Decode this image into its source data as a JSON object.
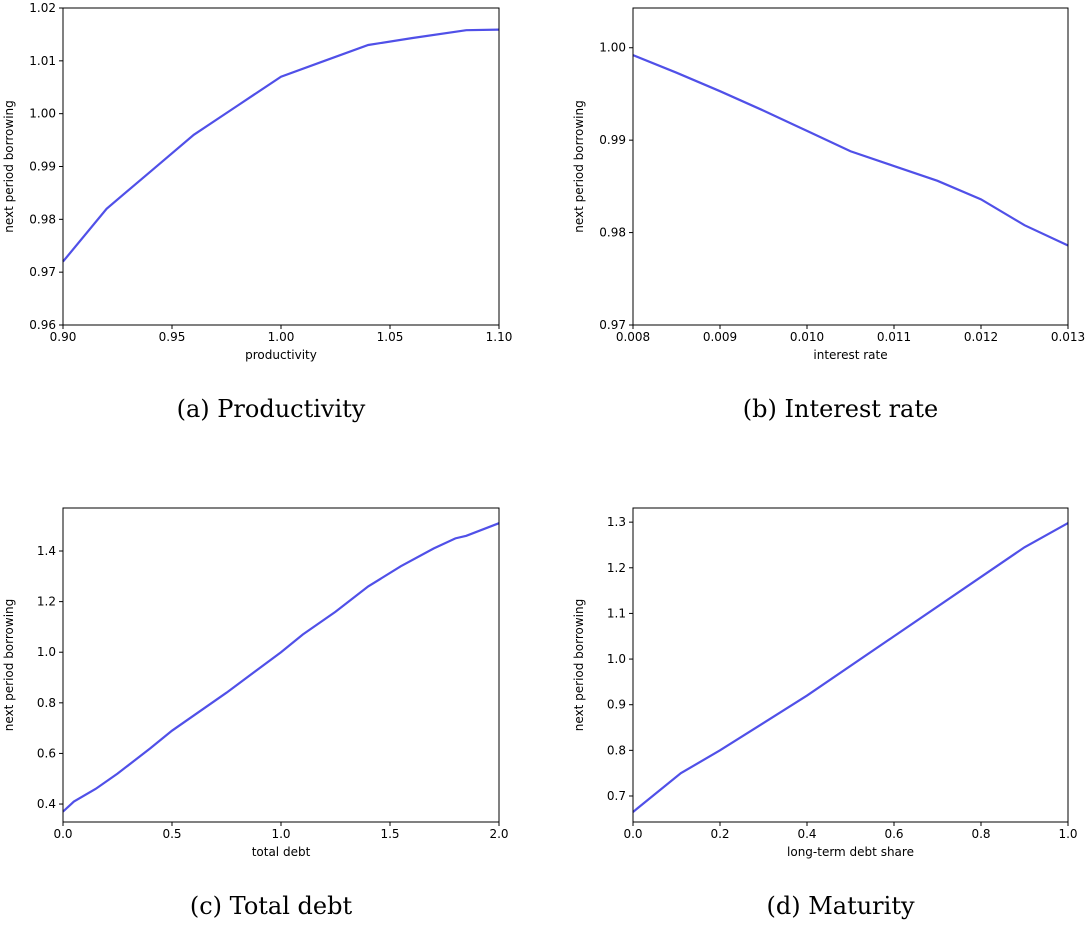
{
  "chart_data": [
    {
      "type": "line",
      "title": "(a) Productivity",
      "xlabel": "productivity",
      "ylabel": "next period borrowing",
      "x": [
        0.9,
        0.92,
        0.94,
        0.96,
        0.98,
        1.0,
        1.02,
        1.04,
        1.06,
        1.085,
        1.1
      ],
      "values": [
        0.972,
        0.982,
        0.989,
        0.996,
        1.0015,
        1.007,
        1.01,
        1.013,
        1.0143,
        1.0158,
        1.0159
      ],
      "color": "#5050e8",
      "xlim": [
        0.9,
        1.1
      ],
      "ylim": [
        0.96,
        1.02
      ],
      "xticks": [
        {
          "value": 0.9,
          "label": "0.90"
        },
        0.95,
        {
          "value": 1,
          "label": "1.00"
        },
        1.05,
        {
          "value": 1.1,
          "label": "1.10"
        }
      ],
      "yticks": [
        {
          "value": 0.96,
          "label": "0.96"
        },
        {
          "value": 0.97,
          "label": "0.97"
        },
        {
          "value": 0.98,
          "label": "0.98"
        },
        {
          "value": 0.99,
          "label": "0.99"
        },
        {
          "value": 1,
          "label": "1.00"
        },
        {
          "value": 1.01,
          "label": "1.01"
        },
        {
          "value": 1.02,
          "label": "1.02"
        }
      ]
    },
    {
      "type": "line",
      "title": "(b) Interest rate",
      "xlabel": "interest rate",
      "ylabel": "next period borrowing",
      "x": [
        0.008,
        0.0085,
        0.009,
        0.0095,
        0.01,
        0.0105,
        0.011,
        0.0115,
        0.012,
        0.0125,
        0.013
      ],
      "values": [
        0.9992,
        0.9973,
        0.9953,
        0.9932,
        0.991,
        0.9888,
        0.9872,
        0.9856,
        0.9836,
        0.9808,
        0.9786
      ],
      "color": "#5050e8",
      "xlim": [
        0.008,
        0.013
      ],
      "ylim": [
        0.97,
        1.0043
      ],
      "xticks": [
        {
          "value": 0.008,
          "label": "0.008"
        },
        {
          "value": 0.009,
          "label": "0.009"
        },
        {
          "value": 0.01,
          "label": "0.010"
        },
        {
          "value": 0.011,
          "label": "0.011"
        },
        {
          "value": 0.012,
          "label": "0.012"
        },
        {
          "value": 0.013,
          "label": "0.013"
        }
      ],
      "yticks": [
        {
          "value": 0.97,
          "label": "0.97"
        },
        {
          "value": 0.98,
          "label": "0.98"
        },
        {
          "value": 0.99,
          "label": "0.99"
        },
        {
          "value": 1,
          "label": "1.00"
        }
      ]
    },
    {
      "type": "line",
      "title": "(c) Total debt",
      "xlabel": "total debt",
      "ylabel": "next period borrowing",
      "x": [
        0,
        0.05,
        0.15,
        0.25,
        0.4,
        0.5,
        0.75,
        1.0,
        1.1,
        1.25,
        1.4,
        1.55,
        1.7,
        1.8,
        1.85,
        2.0
      ],
      "values": [
        0.37,
        0.41,
        0.46,
        0.52,
        0.62,
        0.69,
        0.84,
        1.0,
        1.07,
        1.16,
        1.26,
        1.34,
        1.41,
        1.45,
        1.46,
        1.51
      ],
      "color": "#5050e8",
      "xlim": [
        0,
        2
      ],
      "ylim": [
        0.329,
        1.57
      ],
      "xticks": [
        {
          "value": 0,
          "label": "0.0"
        },
        0.5,
        {
          "value": 1,
          "label": "1.0"
        },
        1.5,
        {
          "value": 2,
          "label": "2.0"
        }
      ],
      "yticks": [
        0.4,
        0.6,
        0.8,
        {
          "value": 1,
          "label": "1.0"
        },
        1.2,
        1.4
      ]
    },
    {
      "type": "line",
      "title": "(d) Maturity",
      "xlabel": "long-term debt share",
      "ylabel": "next period borrowing",
      "x": [
        0,
        0.11,
        0.2,
        0.4,
        0.6,
        0.8,
        0.9,
        1.0
      ],
      "values": [
        0.665,
        0.75,
        0.8,
        0.92,
        1.05,
        1.18,
        1.245,
        1.298
      ],
      "color": "#5050e8",
      "xlim": [
        0,
        1
      ],
      "ylim": [
        0.643,
        1.331
      ],
      "xticks": [
        {
          "value": 0,
          "label": "0.0"
        },
        0.2,
        0.4,
        0.6,
        0.8,
        {
          "value": 1,
          "label": "1.0"
        }
      ],
      "yticks": [
        0.7,
        0.8,
        0.9,
        {
          "value": 1,
          "label": "1.0"
        },
        1.1,
        1.2,
        1.3
      ]
    }
  ]
}
